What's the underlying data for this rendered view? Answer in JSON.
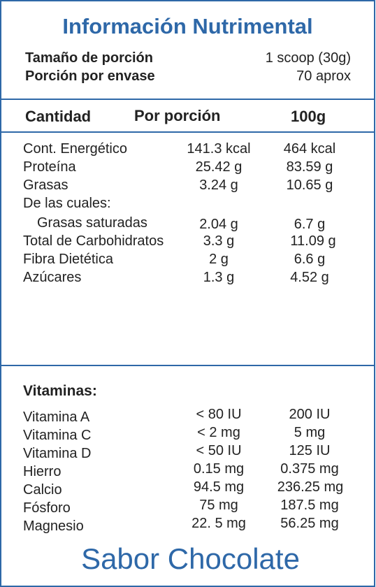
{
  "colors": {
    "brand_blue": "#2e68a8",
    "text": "#222222",
    "background": "#ffffff"
  },
  "title": "Información Nutrimental",
  "serving": {
    "size_label": "Tamaño de porción",
    "size_value": "1 scoop (30g)",
    "per_container_label": "Porción por envase",
    "per_container_value": "70 aprox"
  },
  "columns": {
    "quantity": "Cantidad",
    "per_serving": "Por porción",
    "per_100g": "100g"
  },
  "nutrients": [
    {
      "label": "Cont. Energético",
      "per_serving": "141.3 kcal",
      "per_100g": "464 kcal"
    },
    {
      "label": "Proteína",
      "per_serving": "25.42 g",
      "per_100g": "83.59 g"
    },
    {
      "label": "Grasas",
      "per_serving": "3.24 g",
      "per_100g": "10.65 g"
    },
    {
      "label": "De las cuales:",
      "per_serving": "",
      "per_100g": ""
    },
    {
      "label": "Grasas saturadas",
      "per_serving": "2.04 g",
      "per_100g": "6.7 g"
    },
    {
      "label": "Total de Carbohidratos",
      "per_serving": "3.3 g",
      "per_100g": "11.09 g"
    },
    {
      "label": "Fibra Dietética",
      "per_serving": "2 g",
      "per_100g": "6.6 g"
    },
    {
      "label": "Azúcares",
      "per_serving": "1.3 g",
      "per_100g": "4.52 g"
    }
  ],
  "vitamins_title": "Vitaminas:",
  "vitamins": [
    {
      "label": "Vitamina A",
      "per_serving": "< 80 IU",
      "per_100g": "200 IU"
    },
    {
      "label": "Vitamina C",
      "per_serving": "< 2 mg",
      "per_100g": "5 mg"
    },
    {
      "label": "Vitamina D",
      "per_serving": "< 50 IU",
      "per_100g": "125 IU"
    },
    {
      "label": "Hierro",
      "per_serving": "0.15 mg",
      "per_100g": "0.375 mg"
    },
    {
      "label": "Calcio",
      "per_serving": "94.5 mg",
      "per_100g": "236.25 mg"
    },
    {
      "label": "Fósforo",
      "per_serving": "75 mg",
      "per_100g": "187.5 mg"
    },
    {
      "label": "Magnesio",
      "per_serving": "22. 5 mg",
      "per_100g": "56.25 mg"
    }
  ],
  "flavor": "Sabor Chocolate"
}
